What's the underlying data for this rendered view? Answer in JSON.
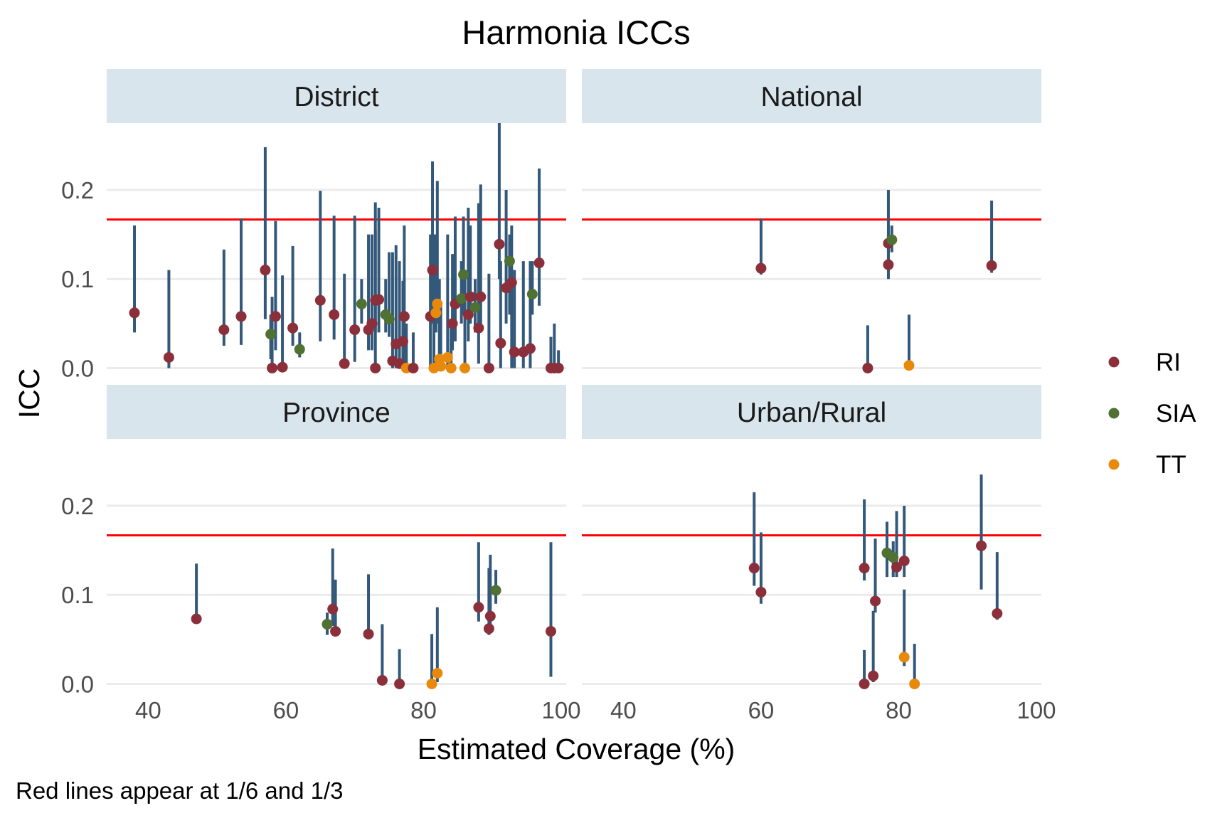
{
  "chart_data": {
    "type": "scatter",
    "title": "Harmonia ICCs",
    "xlabel": "Estimated Coverage (%)",
    "ylabel": "ICC",
    "caption": "Red lines appear at 1/6 and 1/3",
    "xlim": [
      35,
      100
    ],
    "ylim": [
      -0.01,
      0.275
    ],
    "x_ticks": [
      40,
      60,
      80,
      100
    ],
    "y_ticks": [
      0.0,
      0.1,
      0.2
    ],
    "x_tick_labels": [
      "40",
      "60",
      "80",
      "100"
    ],
    "y_tick_labels": [
      "0.0",
      "0.1",
      "0.2"
    ],
    "reference_lines": [
      0.1667,
      0.3333
    ],
    "reference_line_color": "#ff0000",
    "errorbar_color": "#33587a",
    "strip_color": "#d9e5ec",
    "legend_position": "right",
    "legend": [
      {
        "name": "RI",
        "color": "#8b2f3b"
      },
      {
        "name": "SIA",
        "color": "#4f7132"
      },
      {
        "name": "TT",
        "color": "#e8890c"
      }
    ],
    "panels": [
      {
        "name": "District",
        "points": [
          {
            "x": 38,
            "y": 0.062,
            "lo": 0.04,
            "hi": 0.16,
            "s": "RI"
          },
          {
            "x": 43,
            "y": 0.012,
            "lo": 0.0,
            "hi": 0.11,
            "s": "RI"
          },
          {
            "x": 51,
            "y": 0.043,
            "lo": 0.025,
            "hi": 0.133,
            "s": "RI"
          },
          {
            "x": 53.5,
            "y": 0.058,
            "lo": 0.026,
            "hi": 0.168,
            "s": "RI"
          },
          {
            "x": 57,
            "y": 0.11,
            "lo": 0.055,
            "hi": 0.248,
            "s": "RI"
          },
          {
            "x": 58,
            "y": 0.0,
            "lo": 0.0,
            "hi": 0.08,
            "s": "RI"
          },
          {
            "x": 58.5,
            "y": 0.058,
            "lo": 0.02,
            "hi": 0.165,
            "s": "RI"
          },
          {
            "x": 57.8,
            "y": 0.038,
            "lo": 0.01,
            "hi": 0.06,
            "s": "SIA"
          },
          {
            "x": 59.5,
            "y": 0.001,
            "lo": 0.0,
            "hi": 0.104,
            "s": "RI"
          },
          {
            "x": 61,
            "y": 0.045,
            "lo": 0.025,
            "hi": 0.137,
            "s": "RI"
          },
          {
            "x": 62,
            "y": 0.021,
            "lo": 0.012,
            "hi": 0.04,
            "s": "SIA"
          },
          {
            "x": 65,
            "y": 0.076,
            "lo": 0.03,
            "hi": 0.199,
            "s": "RI"
          },
          {
            "x": 67,
            "y": 0.06,
            "lo": 0.032,
            "hi": 0.171,
            "s": "RI"
          },
          {
            "x": 68.5,
            "y": 0.005,
            "lo": 0.0,
            "hi": 0.106,
            "s": "RI"
          },
          {
            "x": 70,
            "y": 0.043,
            "lo": 0.007,
            "hi": 0.171,
            "s": "RI"
          },
          {
            "x": 71,
            "y": 0.072,
            "lo": 0.05,
            "hi": 0.1,
            "s": "SIA"
          },
          {
            "x": 72,
            "y": 0.043,
            "lo": 0.02,
            "hi": 0.15,
            "s": "RI"
          },
          {
            "x": 72.5,
            "y": 0.05,
            "lo": 0.02,
            "hi": 0.15,
            "s": "RI"
          },
          {
            "x": 73,
            "y": 0.0,
            "lo": 0.0,
            "hi": 0.186,
            "s": "RI"
          },
          {
            "x": 73,
            "y": 0.076,
            "lo": 0.04,
            "hi": 0.155,
            "s": "RI"
          },
          {
            "x": 73.5,
            "y": 0.077,
            "lo": 0.04,
            "hi": 0.18,
            "s": "RI"
          },
          {
            "x": 74.5,
            "y": 0.06,
            "lo": 0.04,
            "hi": 0.1,
            "s": "SIA"
          },
          {
            "x": 75,
            "y": 0.055,
            "lo": 0.035,
            "hi": 0.13,
            "s": "SIA"
          },
          {
            "x": 75.5,
            "y": 0.008,
            "lo": 0.0,
            "hi": 0.13,
            "s": "RI"
          },
          {
            "x": 76,
            "y": 0.027,
            "lo": 0.0,
            "hi": 0.138,
            "s": "RI"
          },
          {
            "x": 76.5,
            "y": 0.005,
            "lo": 0.0,
            "hi": 0.12,
            "s": "RI"
          },
          {
            "x": 77,
            "y": 0.03,
            "lo": 0.0,
            "hi": 0.098,
            "s": "RI"
          },
          {
            "x": 77.2,
            "y": 0.058,
            "lo": 0.0,
            "hi": 0.16,
            "s": "RI"
          },
          {
            "x": 77.5,
            "y": 0.0,
            "lo": 0.0,
            "hi": 0.05,
            "s": "TT"
          },
          {
            "x": 78.5,
            "y": 0.0,
            "lo": 0.0,
            "hi": 0.04,
            "s": "RI"
          },
          {
            "x": 81,
            "y": 0.058,
            "lo": 0.0,
            "hi": 0.15,
            "s": "RI"
          },
          {
            "x": 81.3,
            "y": 0.11,
            "lo": 0.05,
            "hi": 0.232,
            "s": "RI"
          },
          {
            "x": 81.5,
            "y": 0.0,
            "lo": 0.0,
            "hi": 0.15,
            "s": "TT"
          },
          {
            "x": 81.8,
            "y": 0.062,
            "lo": 0.04,
            "hi": 0.15,
            "s": "TT"
          },
          {
            "x": 82,
            "y": 0.072,
            "lo": 0.05,
            "hi": 0.21,
            "s": "TT"
          },
          {
            "x": 82.3,
            "y": 0.01,
            "lo": 0.0,
            "hi": 0.1,
            "s": "TT"
          },
          {
            "x": 82.5,
            "y": 0.002,
            "lo": 0.0,
            "hi": 0.07,
            "s": "TT"
          },
          {
            "x": 83.5,
            "y": 0.012,
            "lo": 0.0,
            "hi": 0.15,
            "s": "TT"
          },
          {
            "x": 84,
            "y": 0.0,
            "lo": 0.0,
            "hi": 0.05,
            "s": "TT"
          },
          {
            "x": 84.2,
            "y": 0.05,
            "lo": 0.02,
            "hi": 0.128,
            "s": "RI"
          },
          {
            "x": 84.6,
            "y": 0.072,
            "lo": 0.03,
            "hi": 0.17,
            "s": "RI"
          },
          {
            "x": 85.5,
            "y": 0.078,
            "lo": 0.05,
            "hi": 0.12,
            "s": "SIA"
          },
          {
            "x": 85.8,
            "y": 0.105,
            "lo": 0.06,
            "hi": 0.17,
            "s": "SIA"
          },
          {
            "x": 86,
            "y": 0.0,
            "lo": 0.0,
            "hi": 0.1,
            "s": "TT"
          },
          {
            "x": 86.5,
            "y": 0.06,
            "lo": 0.03,
            "hi": 0.18,
            "s": "RI"
          },
          {
            "x": 86.8,
            "y": 0.08,
            "lo": 0.05,
            "hi": 0.16,
            "s": "RI"
          },
          {
            "x": 87.5,
            "y": 0.068,
            "lo": 0.04,
            "hi": 0.1,
            "s": "SIA"
          },
          {
            "x": 88,
            "y": 0.045,
            "lo": 0.005,
            "hi": 0.185,
            "s": "RI"
          },
          {
            "x": 88.3,
            "y": 0.08,
            "lo": 0.04,
            "hi": 0.206,
            "s": "RI"
          },
          {
            "x": 89.5,
            "y": 0.0,
            "lo": 0.0,
            "hi": 0.106,
            "s": "RI"
          },
          {
            "x": 91,
            "y": 0.139,
            "lo": 0.1,
            "hi": 0.275,
            "s": "RI"
          },
          {
            "x": 91.2,
            "y": 0.028,
            "lo": 0.0,
            "hi": 0.12,
            "s": "RI"
          },
          {
            "x": 92,
            "y": 0.09,
            "lo": 0.05,
            "hi": 0.2,
            "s": "RI"
          },
          {
            "x": 92.5,
            "y": 0.12,
            "lo": 0.06,
            "hi": 0.15,
            "s": "SIA"
          },
          {
            "x": 92.8,
            "y": 0.096,
            "lo": 0.0,
            "hi": 0.16,
            "s": "RI"
          },
          {
            "x": 93.2,
            "y": 0.018,
            "lo": 0.0,
            "hi": 0.11,
            "s": "RI"
          },
          {
            "x": 94.5,
            "y": 0.018,
            "lo": 0.0,
            "hi": 0.12,
            "s": "RI"
          },
          {
            "x": 95.5,
            "y": 0.022,
            "lo": 0.0,
            "hi": 0.12,
            "s": "RI"
          },
          {
            "x": 95.8,
            "y": 0.083,
            "lo": 0.06,
            "hi": 0.12,
            "s": "SIA"
          },
          {
            "x": 96.8,
            "y": 0.118,
            "lo": 0.07,
            "hi": 0.224,
            "s": "RI"
          },
          {
            "x": 98.5,
            "y": 0.0,
            "lo": 0.0,
            "hi": 0.035,
            "s": "RI"
          },
          {
            "x": 99,
            "y": 0.0,
            "lo": 0.0,
            "hi": 0.05,
            "s": "RI"
          },
          {
            "x": 99.6,
            "y": 0.0,
            "lo": 0.0,
            "hi": 0.02,
            "s": "RI"
          }
        ]
      },
      {
        "name": "National",
        "points": [
          {
            "x": 60,
            "y": 0.112,
            "lo": 0.105,
            "hi": 0.168,
            "s": "RI"
          },
          {
            "x": 75.5,
            "y": 0.0,
            "lo": 0.0,
            "hi": 0.048,
            "s": "RI"
          },
          {
            "x": 78.5,
            "y": 0.14,
            "lo": 0.12,
            "hi": 0.2,
            "s": "RI"
          },
          {
            "x": 78.5,
            "y": 0.116,
            "lo": 0.1,
            "hi": 0.15,
            "s": "RI"
          },
          {
            "x": 79,
            "y": 0.144,
            "lo": 0.13,
            "hi": 0.16,
            "s": "SIA"
          },
          {
            "x": 81.5,
            "y": 0.003,
            "lo": 0.0,
            "hi": 0.06,
            "s": "TT"
          },
          {
            "x": 93.5,
            "y": 0.115,
            "lo": 0.107,
            "hi": 0.188,
            "s": "RI"
          }
        ]
      },
      {
        "name": "Province",
        "points": [
          {
            "x": 47,
            "y": 0.073,
            "lo": 0.07,
            "hi": 0.135,
            "s": "RI"
          },
          {
            "x": 66,
            "y": 0.067,
            "lo": 0.055,
            "hi": 0.08,
            "s": "SIA"
          },
          {
            "x": 66.8,
            "y": 0.084,
            "lo": 0.065,
            "hi": 0.152,
            "s": "RI"
          },
          {
            "x": 67.2,
            "y": 0.059,
            "lo": 0.055,
            "hi": 0.117,
            "s": "RI"
          },
          {
            "x": 72,
            "y": 0.056,
            "lo": 0.05,
            "hi": 0.123,
            "s": "RI"
          },
          {
            "x": 74,
            "y": 0.004,
            "lo": 0.0,
            "hi": 0.067,
            "s": "RI"
          },
          {
            "x": 76.5,
            "y": 0.0,
            "lo": 0.0,
            "hi": 0.039,
            "s": "RI"
          },
          {
            "x": 81.2,
            "y": 0.0,
            "lo": 0.0,
            "hi": 0.056,
            "s": "TT"
          },
          {
            "x": 82,
            "y": 0.012,
            "lo": 0.002,
            "hi": 0.086,
            "s": "TT"
          },
          {
            "x": 88,
            "y": 0.086,
            "lo": 0.07,
            "hi": 0.159,
            "s": "RI"
          },
          {
            "x": 89.5,
            "y": 0.062,
            "lo": 0.055,
            "hi": 0.13,
            "s": "RI"
          },
          {
            "x": 89.7,
            "y": 0.076,
            "lo": 0.06,
            "hi": 0.145,
            "s": "RI"
          },
          {
            "x": 90.5,
            "y": 0.105,
            "lo": 0.09,
            "hi": 0.128,
            "s": "SIA"
          },
          {
            "x": 98.5,
            "y": 0.059,
            "lo": 0.008,
            "hi": 0.159,
            "s": "RI"
          }
        ]
      },
      {
        "name": "Urban/Rural",
        "points": [
          {
            "x": 59,
            "y": 0.13,
            "lo": 0.11,
            "hi": 0.215,
            "s": "RI"
          },
          {
            "x": 60,
            "y": 0.103,
            "lo": 0.09,
            "hi": 0.17,
            "s": "RI"
          },
          {
            "x": 75,
            "y": 0.13,
            "lo": 0.116,
            "hi": 0.207,
            "s": "RI"
          },
          {
            "x": 75,
            "y": 0.0,
            "lo": 0.0,
            "hi": 0.038,
            "s": "RI"
          },
          {
            "x": 76.3,
            "y": 0.009,
            "lo": 0.002,
            "hi": 0.082,
            "s": "RI"
          },
          {
            "x": 76.6,
            "y": 0.093,
            "lo": 0.08,
            "hi": 0.163,
            "s": "RI"
          },
          {
            "x": 78.3,
            "y": 0.147,
            "lo": 0.12,
            "hi": 0.182,
            "s": "SIA"
          },
          {
            "x": 79.2,
            "y": 0.142,
            "lo": 0.12,
            "hi": 0.16,
            "s": "SIA"
          },
          {
            "x": 79.7,
            "y": 0.131,
            "lo": 0.12,
            "hi": 0.194,
            "s": "RI"
          },
          {
            "x": 80.8,
            "y": 0.138,
            "lo": 0.12,
            "hi": 0.2,
            "s": "RI"
          },
          {
            "x": 80.8,
            "y": 0.03,
            "lo": 0.02,
            "hi": 0.106,
            "s": "TT"
          },
          {
            "x": 82.3,
            "y": 0.0,
            "lo": 0.0,
            "hi": 0.045,
            "s": "TT"
          },
          {
            "x": 92,
            "y": 0.155,
            "lo": 0.106,
            "hi": 0.235,
            "s": "RI"
          },
          {
            "x": 94.3,
            "y": 0.079,
            "lo": 0.072,
            "hi": 0.148,
            "s": "RI"
          }
        ]
      }
    ]
  }
}
